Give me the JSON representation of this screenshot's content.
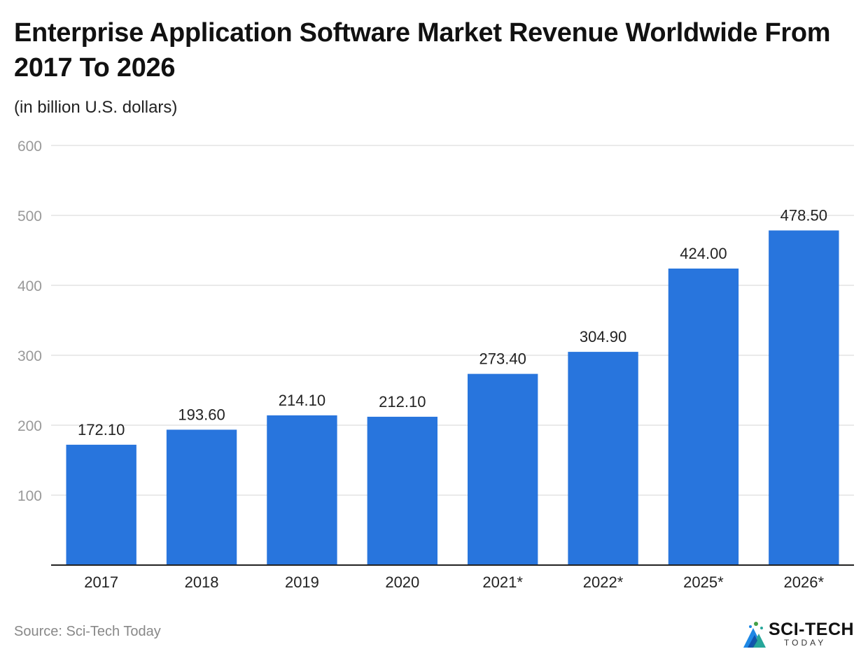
{
  "header": {
    "title": "Enterprise Application Software Market Revenue Worldwide From 2017 To 2026",
    "subtitle": "(in billion U.S. dollars)"
  },
  "footer": {
    "source": "Source: Sci-Tech Today",
    "logo_main": "SCI-TECH",
    "logo_sub": "TODAY"
  },
  "colors": {
    "bar": "#2875DD",
    "grid": "#DDDDDD",
    "axis": "#222222",
    "tick": "#999999"
  },
  "chart_data": {
    "type": "bar",
    "title": "Enterprise Application Software Market Revenue Worldwide From 2017 To 2026",
    "xlabel": "",
    "ylabel": "(in billion U.S. dollars)",
    "ylim": [
      0,
      600
    ],
    "yticks": [
      100,
      200,
      300,
      400,
      500,
      600
    ],
    "grid": true,
    "categories": [
      "2017",
      "2018",
      "2019",
      "2020",
      "2021*",
      "2022*",
      "2025*",
      "2026*"
    ],
    "values": [
      172.1,
      193.6,
      214.1,
      212.1,
      273.4,
      304.9,
      424.0,
      478.5
    ],
    "labels": [
      "172.10",
      "193.60",
      "214.10",
      "212.10",
      "273.40",
      "304.90",
      "424.00",
      "478.50"
    ]
  }
}
